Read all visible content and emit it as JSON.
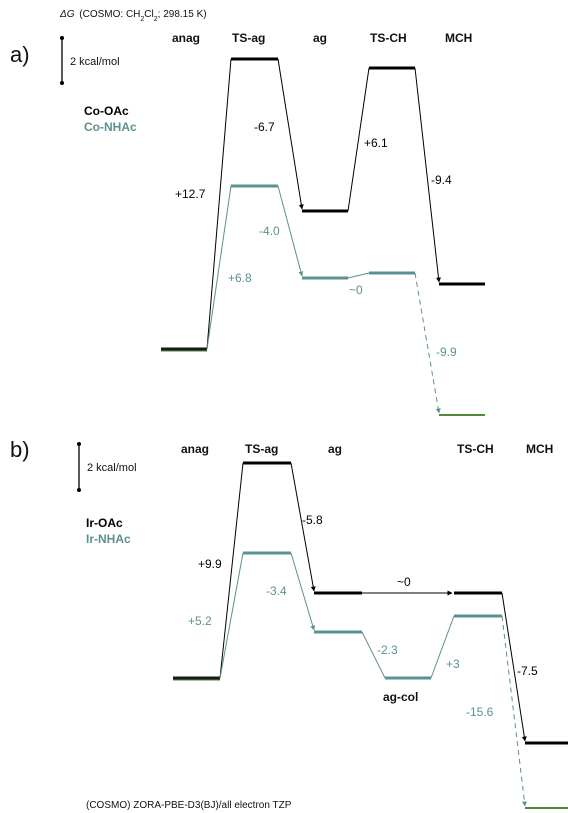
{
  "header": {
    "symbol": "ΔG",
    "prefix": "(COSMO: CH",
    "sub1": "2",
    "mid": "Cl",
    "sub2": "2",
    "suffix": "; 298.15 K)"
  },
  "colors": {
    "series_a": "#000000",
    "series_b": "#5b9191",
    "stub": "#4e8a3e"
  },
  "panel_a": {
    "letter": "a)",
    "scale_label": "2 kcal/mol",
    "legend": [
      "Co-OAc",
      "Co-NHAc"
    ],
    "states": [
      "anag",
      "TS-ag",
      "ag",
      "TS-CH",
      "MCH"
    ],
    "deltas_black": [
      "+12.7",
      "-6.7",
      "+6.1",
      "-9.4"
    ],
    "deltas_teal": [
      "+6.8",
      "-4.0",
      "~0",
      "-9.9"
    ]
  },
  "panel_b": {
    "letter": "b)",
    "scale_label": "2 kcal/mol",
    "legend": [
      "Ir-OAc",
      "Ir-NHAc"
    ],
    "states": [
      "anag",
      "TS-ag",
      "ag",
      "TS-CH",
      "MCH"
    ],
    "extra_state": "ag-col",
    "deltas_black": [
      "+9.9",
      "-5.8",
      "~0",
      "-7.5"
    ],
    "deltas_teal": [
      "+5.2",
      "-3.4",
      "-2.3",
      "+3",
      "-15.6"
    ]
  },
  "footer": "(COSMO) ZORA-PBE-D3(BJ)/all electron TZP"
}
